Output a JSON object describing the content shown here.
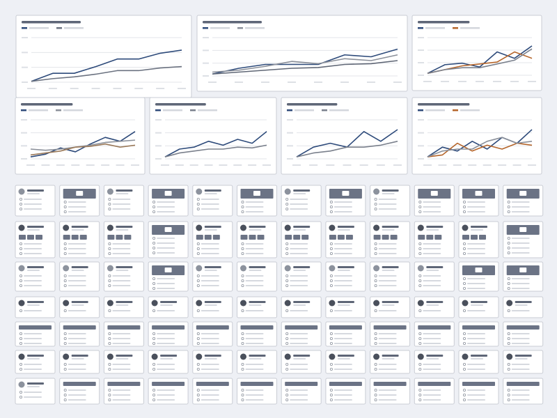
{
  "chart_data": [
    {
      "type": "line",
      "categories": [
        null,
        null,
        null,
        null,
        null,
        null,
        null,
        null
      ],
      "ylim": [
        0,
        100
      ],
      "series": [
        {
          "color": "#2d4a7a",
          "values": [
            2,
            20,
            20,
            35,
            52,
            52,
            65,
            72
          ]
        },
        {
          "color": "#6b7280",
          "values": [
            2,
            8,
            12,
            18,
            26,
            26,
            32,
            35
          ]
        }
      ]
    },
    {
      "type": "line",
      "categories": [
        null,
        null,
        null,
        null,
        null,
        null,
        null,
        null
      ],
      "ylim": [
        0,
        100
      ],
      "series": [
        {
          "color": "#2d4a7a",
          "values": [
            5,
            20,
            30,
            30,
            30,
            55,
            50,
            70
          ]
        },
        {
          "color": "#8a8f99",
          "values": [
            10,
            15,
            25,
            38,
            32,
            45,
            40,
            55
          ]
        },
        {
          "color": "#5f6675",
          "values": [
            5,
            10,
            15,
            20,
            22,
            30,
            32,
            40
          ]
        }
      ]
    },
    {
      "type": "line",
      "categories": [
        null,
        null,
        null,
        null,
        null,
        null,
        null
      ],
      "ylim": [
        0,
        100
      ],
      "series": [
        {
          "color": "#2d4a7a",
          "values": [
            5,
            28,
            32,
            22,
            62,
            45,
            78
          ]
        },
        {
          "color": "#b5652a",
          "values": [
            5,
            15,
            25,
            30,
            35,
            62,
            45
          ]
        },
        {
          "color": "#7a808c",
          "values": [
            5,
            15,
            20,
            20,
            30,
            40,
            70
          ]
        }
      ]
    },
    {
      "type": "line",
      "categories": [
        null,
        null,
        null,
        null,
        null,
        null,
        null,
        null
      ],
      "ylim": [
        0,
        100
      ],
      "series": [
        {
          "color": "#2d4a7a",
          "values": [
            5,
            12,
            28,
            18,
            38,
            55,
            45,
            70
          ]
        },
        {
          "color": "#8a8f99",
          "values": [
            25,
            22,
            25,
            30,
            35,
            42,
            45,
            48
          ]
        },
        {
          "color": "#9b7a5a",
          "values": [
            10,
            15,
            20,
            30,
            32,
            38,
            30,
            35
          ]
        }
      ]
    },
    {
      "type": "line",
      "categories": [
        null,
        null,
        null,
        null,
        null,
        null,
        null,
        null
      ],
      "ylim": [
        0,
        100
      ],
      "series": [
        {
          "color": "#2d4a7a",
          "values": [
            5,
            25,
            30,
            45,
            35,
            50,
            40,
            70
          ]
        },
        {
          "color": "#7a808c",
          "values": [
            5,
            15,
            20,
            25,
            25,
            30,
            28,
            35
          ]
        }
      ]
    },
    {
      "type": "line",
      "categories": [
        null,
        null,
        null,
        null,
        null,
        null,
        null
      ],
      "ylim": [
        0,
        100
      ],
      "series": [
        {
          "color": "#2d4a7a",
          "values": [
            5,
            30,
            40,
            30,
            70,
            45,
            75
          ]
        },
        {
          "color": "#7a808c",
          "values": [
            5,
            15,
            20,
            30,
            30,
            35,
            45
          ]
        }
      ]
    },
    {
      "type": "line",
      "categories": [
        null,
        null,
        null,
        null,
        null,
        null,
        null,
        null
      ],
      "ylim": [
        0,
        100
      ],
      "series": [
        {
          "color": "#2d4a7a",
          "values": [
            5,
            30,
            20,
            45,
            25,
            55,
            40,
            75
          ]
        },
        {
          "color": "#b5652a",
          "values": [
            5,
            10,
            40,
            20,
            35,
            25,
            40,
            35
          ]
        },
        {
          "color": "#8a8f99",
          "values": [
            5,
            20,
            25,
            25,
            45,
            55,
            40,
            45
          ]
        }
      ]
    }
  ]
}
